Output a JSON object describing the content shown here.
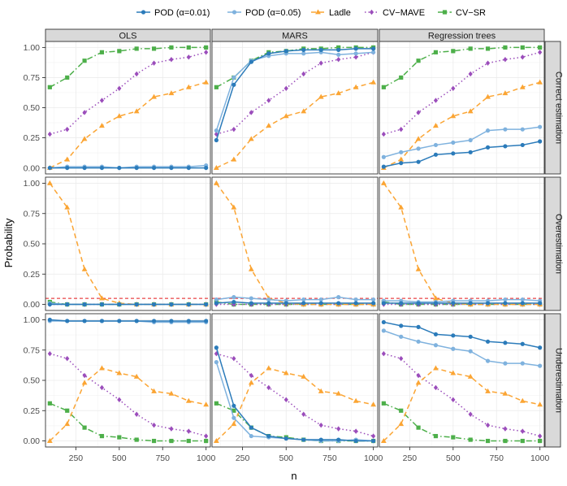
{
  "chart_data": {
    "type": "line",
    "xlabel": "n",
    "ylabel": "Probability",
    "x": [
      100,
      200,
      300,
      400,
      500,
      600,
      700,
      800,
      900,
      1000
    ],
    "xlim": [
      75,
      1025
    ],
    "ylim": [
      -0.05,
      1.05
    ],
    "xticks": [
      250,
      500,
      750,
      1000
    ],
    "yticks": [
      0.0,
      0.25,
      0.5,
      0.75,
      1.0
    ],
    "ytick_labels": [
      "0.00",
      "0.25",
      "0.50",
      "0.75",
      "1.00"
    ],
    "grid": true,
    "legend_position": "top",
    "columns": [
      "OLS",
      "MARS",
      "Regression trees"
    ],
    "rows": [
      "Correct estimation",
      "Overestimation",
      "Underestimation"
    ],
    "reference_line": {
      "row": "Overestimation",
      "y": 0.05,
      "color": "#e41a1c",
      "style": "dashed"
    },
    "series": [
      {
        "name": "POD (α=0.01)",
        "color": "#2b7bba",
        "marker": "circle",
        "dash": "solid"
      },
      {
        "name": "POD (α=0.05)",
        "color": "#7fb2de",
        "marker": "circle",
        "dash": "solid"
      },
      {
        "name": "Ladle",
        "color": "#fba534",
        "marker": "triangle",
        "dash": "dashed"
      },
      {
        "name": "CV−MAVE",
        "color": "#9b4dbb",
        "marker": "diamond",
        "dash": "dotted"
      },
      {
        "name": "CV−SR",
        "color": "#4daf4a",
        "marker": "square",
        "dash": "dotdash"
      }
    ],
    "panels": [
      {
        "row": 0,
        "col": 0,
        "series": [
          {
            "name": "POD (α=0.01)",
            "values": [
              0.0,
              0.0,
              0.0,
              0.0,
              0.0,
              0.0,
              0.0,
              0.0,
              0.0,
              0.0
            ]
          },
          {
            "name": "POD (α=0.05)",
            "values": [
              0.0,
              0.01,
              0.01,
              0.01,
              0.0,
              0.01,
              0.01,
              0.01,
              0.01,
              0.02
            ]
          },
          {
            "name": "Ladle",
            "values": [
              0.0,
              0.07,
              0.24,
              0.35,
              0.43,
              0.47,
              0.59,
              0.62,
              0.67,
              0.71
            ]
          },
          {
            "name": "CV−MAVE",
            "values": [
              0.28,
              0.32,
              0.46,
              0.56,
              0.66,
              0.78,
              0.87,
              0.9,
              0.92,
              0.96
            ]
          },
          {
            "name": "CV−SR",
            "values": [
              0.67,
              0.75,
              0.89,
              0.96,
              0.97,
              0.99,
              0.99,
              1.0,
              1.0,
              1.0
            ]
          }
        ]
      },
      {
        "row": 0,
        "col": 1,
        "series": [
          {
            "name": "POD (α=0.01)",
            "values": [
              0.23,
              0.69,
              0.88,
              0.95,
              0.97,
              0.98,
              0.98,
              0.98,
              0.99,
              0.99
            ]
          },
          {
            "name": "POD (α=0.05)",
            "values": [
              0.31,
              0.75,
              0.89,
              0.93,
              0.95,
              0.95,
              0.96,
              0.94,
              0.95,
              0.96
            ]
          },
          {
            "name": "Ladle",
            "values": [
              0.0,
              0.07,
              0.24,
              0.35,
              0.43,
              0.47,
              0.59,
              0.62,
              0.67,
              0.71
            ]
          },
          {
            "name": "CV−MAVE",
            "values": [
              0.28,
              0.32,
              0.46,
              0.56,
              0.66,
              0.78,
              0.87,
              0.9,
              0.92,
              0.96
            ]
          },
          {
            "name": "CV−SR",
            "values": [
              0.67,
              0.75,
              0.89,
              0.96,
              0.97,
              0.99,
              0.99,
              1.0,
              1.0,
              1.0
            ]
          }
        ]
      },
      {
        "row": 0,
        "col": 2,
        "series": [
          {
            "name": "POD (α=0.01)",
            "values": [
              0.01,
              0.04,
              0.05,
              0.11,
              0.12,
              0.13,
              0.17,
              0.18,
              0.19,
              0.22
            ]
          },
          {
            "name": "POD (α=0.05)",
            "values": [
              0.09,
              0.13,
              0.16,
              0.19,
              0.21,
              0.23,
              0.31,
              0.32,
              0.32,
              0.34
            ]
          },
          {
            "name": "Ladle",
            "values": [
              0.0,
              0.07,
              0.24,
              0.35,
              0.43,
              0.47,
              0.59,
              0.62,
              0.67,
              0.71
            ]
          },
          {
            "name": "CV−MAVE",
            "values": [
              0.28,
              0.32,
              0.46,
              0.56,
              0.66,
              0.78,
              0.87,
              0.9,
              0.92,
              0.96
            ]
          },
          {
            "name": "CV−SR",
            "values": [
              0.67,
              0.75,
              0.89,
              0.96,
              0.97,
              0.99,
              0.99,
              1.0,
              1.0,
              1.0
            ]
          }
        ]
      },
      {
        "row": 1,
        "col": 0,
        "series": [
          {
            "name": "POD (α=0.01)",
            "values": [
              0.0,
              0.0,
              0.0,
              0.0,
              0.0,
              0.0,
              0.0,
              0.0,
              0.0,
              0.0
            ]
          },
          {
            "name": "POD (α=0.05)",
            "values": [
              0.01,
              0.0,
              0.0,
              0.0,
              0.0,
              0.0,
              0.0,
              0.0,
              0.0,
              0.0
            ]
          },
          {
            "name": "Ladle",
            "values": [
              1.0,
              0.8,
              0.29,
              0.05,
              0.01,
              0.0,
              0.0,
              0.0,
              0.0,
              0.0
            ]
          },
          {
            "name": "CV−MAVE",
            "values": [
              0.0,
              0.0,
              0.0,
              0.0,
              0.0,
              0.0,
              0.0,
              0.0,
              0.0,
              0.0
            ]
          },
          {
            "name": "CV−SR",
            "values": [
              0.02,
              0.0,
              0.0,
              0.0,
              0.0,
              0.0,
              0.0,
              0.0,
              0.0,
              0.0
            ]
          }
        ]
      },
      {
        "row": 1,
        "col": 1,
        "series": [
          {
            "name": "POD (α=0.01)",
            "values": [
              0.01,
              0.02,
              0.01,
              0.01,
              0.01,
              0.01,
              0.01,
              0.01,
              0.01,
              0.01
            ]
          },
          {
            "name": "POD (α=0.05)",
            "values": [
              0.04,
              0.06,
              0.05,
              0.04,
              0.03,
              0.04,
              0.04,
              0.06,
              0.04,
              0.04
            ]
          },
          {
            "name": "Ladle",
            "values": [
              1.0,
              0.8,
              0.29,
              0.05,
              0.01,
              0.0,
              0.0,
              0.0,
              0.0,
              0.0
            ]
          },
          {
            "name": "CV−MAVE",
            "values": [
              0.0,
              0.0,
              0.0,
              0.0,
              0.0,
              0.0,
              0.0,
              0.0,
              0.0,
              0.0
            ]
          },
          {
            "name": "CV−SR",
            "values": [
              0.02,
              0.0,
              0.0,
              0.0,
              0.0,
              0.0,
              0.0,
              0.0,
              0.0,
              0.0
            ]
          }
        ]
      },
      {
        "row": 1,
        "col": 2,
        "series": [
          {
            "name": "POD (α=0.01)",
            "values": [
              0.01,
              0.01,
              0.01,
              0.01,
              0.01,
              0.01,
              0.01,
              0.01,
              0.01,
              0.01
            ]
          },
          {
            "name": "POD (α=0.05)",
            "values": [
              0.03,
              0.03,
              0.02,
              0.02,
              0.03,
              0.03,
              0.03,
              0.04,
              0.04,
              0.03
            ]
          },
          {
            "name": "Ladle",
            "values": [
              1.0,
              0.8,
              0.29,
              0.05,
              0.01,
              0.0,
              0.0,
              0.0,
              0.0,
              0.0
            ]
          },
          {
            "name": "CV−MAVE",
            "values": [
              0.0,
              0.0,
              0.0,
              0.0,
              0.0,
              0.0,
              0.0,
              0.0,
              0.0,
              0.0
            ]
          },
          {
            "name": "CV−SR",
            "values": [
              0.02,
              0.0,
              0.0,
              0.0,
              0.0,
              0.0,
              0.0,
              0.0,
              0.0,
              0.0
            ]
          }
        ]
      },
      {
        "row": 2,
        "col": 0,
        "series": [
          {
            "name": "POD (α=0.01)",
            "values": [
              1.0,
              0.99,
              0.99,
              0.99,
              0.99,
              0.99,
              0.99,
              0.99,
              0.99,
              0.99
            ]
          },
          {
            "name": "POD (α=0.05)",
            "values": [
              0.99,
              0.99,
              0.99,
              0.99,
              0.99,
              0.99,
              0.98,
              0.98,
              0.98,
              0.98
            ]
          },
          {
            "name": "Ladle",
            "values": [
              0.0,
              0.14,
              0.48,
              0.6,
              0.56,
              0.53,
              0.41,
              0.39,
              0.33,
              0.3
            ]
          },
          {
            "name": "CV−MAVE",
            "values": [
              0.72,
              0.68,
              0.54,
              0.44,
              0.34,
              0.22,
              0.13,
              0.1,
              0.08,
              0.04
            ]
          },
          {
            "name": "CV−SR",
            "values": [
              0.31,
              0.25,
              0.11,
              0.04,
              0.03,
              0.01,
              0.0,
              0.0,
              0.0,
              0.0
            ]
          }
        ]
      },
      {
        "row": 2,
        "col": 1,
        "series": [
          {
            "name": "POD (α=0.01)",
            "values": [
              0.77,
              0.29,
              0.11,
              0.04,
              0.02,
              0.01,
              0.01,
              0.01,
              0.0,
              0.0
            ]
          },
          {
            "name": "POD (α=0.05)",
            "values": [
              0.65,
              0.19,
              0.04,
              0.03,
              0.02,
              0.01,
              0.0,
              0.0,
              0.01,
              0.0
            ]
          },
          {
            "name": "Ladle",
            "values": [
              0.0,
              0.14,
              0.48,
              0.6,
              0.56,
              0.53,
              0.41,
              0.39,
              0.33,
              0.3
            ]
          },
          {
            "name": "CV−MAVE",
            "values": [
              0.72,
              0.68,
              0.54,
              0.44,
              0.34,
              0.22,
              0.13,
              0.1,
              0.08,
              0.04
            ]
          },
          {
            "name": "CV−SR",
            "values": [
              0.31,
              0.25,
              0.11,
              0.04,
              0.03,
              0.01,
              0.0,
              0.0,
              0.0,
              0.0
            ]
          }
        ]
      },
      {
        "row": 2,
        "col": 2,
        "series": [
          {
            "name": "POD (α=0.01)",
            "values": [
              0.98,
              0.95,
              0.94,
              0.88,
              0.87,
              0.86,
              0.82,
              0.81,
              0.8,
              0.77
            ]
          },
          {
            "name": "POD (α=0.05)",
            "values": [
              0.91,
              0.86,
              0.82,
              0.79,
              0.76,
              0.74,
              0.66,
              0.64,
              0.64,
              0.62
            ]
          },
          {
            "name": "Ladle",
            "values": [
              0.0,
              0.14,
              0.48,
              0.6,
              0.56,
              0.53,
              0.41,
              0.39,
              0.33,
              0.3
            ]
          },
          {
            "name": "CV−MAVE",
            "values": [
              0.72,
              0.68,
              0.54,
              0.44,
              0.34,
              0.22,
              0.13,
              0.1,
              0.08,
              0.04
            ]
          },
          {
            "name": "CV−SR",
            "values": [
              0.31,
              0.25,
              0.11,
              0.04,
              0.03,
              0.01,
              0.0,
              0.0,
              0.0,
              0.0
            ]
          }
        ]
      }
    ]
  }
}
